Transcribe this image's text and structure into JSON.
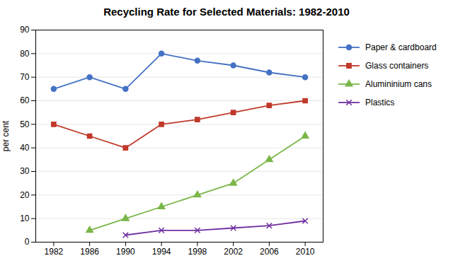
{
  "chart_data": {
    "type": "line",
    "title": "Recycling Rate for Selected Materials: 1982-2010",
    "ylabel": "per cent",
    "x": [
      1982,
      1986,
      1990,
      1994,
      1998,
      2002,
      2006,
      2010
    ],
    "series": [
      {
        "name": "Paper & cardboard",
        "color": "#4472C4",
        "marker": "circle",
        "values": [
          65,
          70,
          65,
          80,
          77,
          75,
          72,
          70
        ]
      },
      {
        "name": "Glass containers",
        "color": "#C0392B",
        "marker": "square",
        "values": [
          50,
          45,
          40,
          50,
          52,
          55,
          58,
          60
        ]
      },
      {
        "name": "Alumininium cans",
        "color": "#7AB648",
        "marker": "triangle",
        "values": [
          null,
          5,
          10,
          15,
          20,
          25,
          35,
          45
        ]
      },
      {
        "name": "Plastics",
        "color": "#7030A0",
        "marker": "times",
        "values": [
          null,
          null,
          3,
          5,
          5,
          6,
          7,
          9
        ]
      }
    ],
    "xlim": [
      1980,
      2012
    ],
    "xticks": [
      1982,
      1986,
      1990,
      1994,
      1998,
      2002,
      2006,
      2010
    ],
    "ylim": [
      0,
      90
    ],
    "yticks": [
      0,
      10,
      20,
      30,
      40,
      50,
      60,
      70,
      80,
      90
    ],
    "grid": true,
    "legend": "right"
  }
}
